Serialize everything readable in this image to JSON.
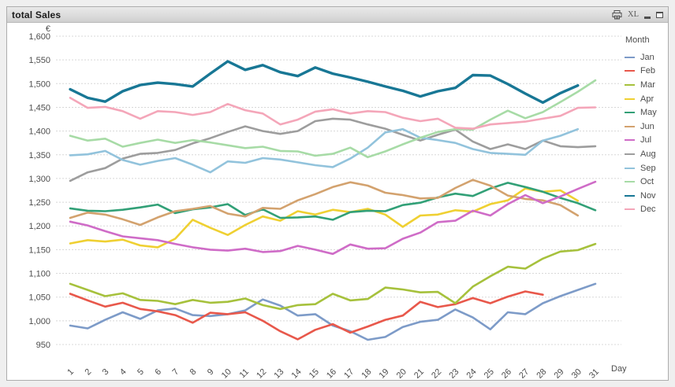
{
  "window": {
    "title": "total Sales",
    "controls": {
      "print_icon": "printer-icon",
      "excel_label": "XL",
      "minimize_icon": "minimize-icon",
      "maximize_icon": "maximize-icon"
    }
  },
  "chart_data": {
    "type": "line",
    "title": "total Sales",
    "xlabel": "Day",
    "ylabel_unit": "€",
    "x": [
      1,
      2,
      3,
      4,
      5,
      6,
      7,
      8,
      9,
      10,
      11,
      12,
      13,
      14,
      15,
      16,
      17,
      18,
      19,
      20,
      21,
      22,
      23,
      24,
      25,
      26,
      27,
      28,
      29,
      30,
      31
    ],
    "ylim": [
      950,
      1600
    ],
    "ytick_step": 50,
    "ytick_labels": [
      "1,600",
      "1,550",
      "1,500",
      "1,450",
      "1,400",
      "1,350",
      "1,300",
      "1,250",
      "1,200",
      "1,150",
      "1,100",
      "1,050",
      "1,000",
      "950"
    ],
    "grid": "horizontal-dashed",
    "legend_title": "Month",
    "legend_position": "right",
    "series": [
      {
        "name": "Jan",
        "color": "#7D9BC8",
        "width": 2.6,
        "values": [
          990,
          984,
          1002,
          1018,
          1004,
          1022,
          1026,
          1012,
          1010,
          1014,
          1022,
          1045,
          1032,
          1011,
          1014,
          990,
          978,
          960,
          966,
          987,
          998,
          1002,
          1024,
          1007,
          982,
          1018,
          1014,
          1037,
          1052,
          1065,
          1078
        ]
      },
      {
        "name": "Feb",
        "color": "#E8584B",
        "width": 2.6,
        "values": [
          1057,
          1043,
          1030,
          1038,
          1025,
          1020,
          1012,
          996,
          1017,
          1014,
          1018,
          1000,
          978,
          961,
          981,
          993,
          975,
          988,
          1002,
          1011,
          1040,
          1029,
          1035,
          1048,
          1037,
          1051,
          1062,
          1055
        ]
      },
      {
        "name": "Mar",
        "color": "#A6C13C",
        "width": 2.6,
        "values": [
          1078,
          1065,
          1052,
          1058,
          1044,
          1042,
          1035,
          1044,
          1038,
          1040,
          1047,
          1033,
          1025,
          1033,
          1035,
          1057,
          1043,
          1046,
          1070,
          1066,
          1060,
          1061,
          1037,
          1072,
          1094,
          1114,
          1110,
          1131,
          1146,
          1149,
          1162
        ]
      },
      {
        "name": "Apr",
        "color": "#EFD032",
        "width": 2.6,
        "values": [
          1163,
          1170,
          1167,
          1171,
          1159,
          1155,
          1173,
          1213,
          1196,
          1181,
          1202,
          1220,
          1211,
          1231,
          1224,
          1234,
          1229,
          1236,
          1224,
          1198,
          1222,
          1224,
          1233,
          1230,
          1246,
          1254,
          1279,
          1272,
          1275,
          1253
        ]
      },
      {
        "name": "May",
        "color": "#32A077",
        "width": 2.6,
        "values": [
          1237,
          1232,
          1231,
          1234,
          1239,
          1245,
          1227,
          1235,
          1239,
          1246,
          1223,
          1235,
          1217,
          1218,
          1220,
          1213,
          1229,
          1232,
          1231,
          1244,
          1249,
          1260,
          1268,
          1263,
          1279,
          1291,
          1282,
          1272,
          1259,
          1248,
          1233
        ]
      },
      {
        "name": "Jun",
        "color": "#D3A26E",
        "width": 2.6,
        "values": [
          1217,
          1228,
          1224,
          1214,
          1202,
          1218,
          1231,
          1236,
          1242,
          1226,
          1220,
          1238,
          1236,
          1254,
          1267,
          1282,
          1292,
          1285,
          1270,
          1265,
          1258,
          1259,
          1280,
          1297,
          1285,
          1264,
          1257,
          1254,
          1244,
          1222
        ]
      },
      {
        "name": "Jul",
        "color": "#CF6CC7",
        "width": 2.6,
        "values": [
          1209,
          1201,
          1189,
          1178,
          1174,
          1170,
          1162,
          1155,
          1150,
          1148,
          1152,
          1145,
          1147,
          1158,
          1150,
          1141,
          1161,
          1152,
          1153,
          1173,
          1186,
          1208,
          1211,
          1232,
          1222,
          1246,
          1265,
          1248,
          1262,
          1278,
          1293
        ]
      },
      {
        "name": "Aug",
        "color": "#9D9D9D",
        "width": 2.6,
        "values": [
          1295,
          1313,
          1322,
          1342,
          1352,
          1354,
          1360,
          1374,
          1385,
          1398,
          1410,
          1400,
          1394,
          1400,
          1421,
          1426,
          1424,
          1414,
          1405,
          1392,
          1380,
          1392,
          1403,
          1378,
          1362,
          1372,
          1362,
          1380,
          1368,
          1366,
          1368
        ]
      },
      {
        "name": "Sep",
        "color": "#92C3DC",
        "width": 2.6,
        "values": [
          1349,
          1351,
          1358,
          1339,
          1329,
          1337,
          1343,
          1329,
          1313,
          1336,
          1333,
          1343,
          1340,
          1334,
          1328,
          1324,
          1342,
          1365,
          1397,
          1404,
          1386,
          1381,
          1375,
          1362,
          1354,
          1352,
          1350,
          1380,
          1390,
          1404
        ]
      },
      {
        "name": "Oct",
        "color": "#A7DBA6",
        "width": 2.6,
        "values": [
          1390,
          1380,
          1384,
          1367,
          1375,
          1382,
          1375,
          1381,
          1376,
          1370,
          1364,
          1367,
          1358,
          1357,
          1348,
          1352,
          1365,
          1345,
          1357,
          1372,
          1386,
          1398,
          1404,
          1403,
          1424,
          1443,
          1427,
          1440,
          1461,
          1483,
          1507
        ]
      },
      {
        "name": "Nov",
        "color": "#187795",
        "width": 3.4,
        "values": [
          1488,
          1470,
          1462,
          1484,
          1497,
          1502,
          1499,
          1494,
          1521,
          1547,
          1529,
          1539,
          1524,
          1516,
          1534,
          1521,
          1513,
          1504,
          1494,
          1485,
          1473,
          1484,
          1491,
          1518,
          1517,
          1499,
          1479,
          1460,
          1480,
          1496
        ]
      },
      {
        "name": "Dec",
        "color": "#F4A6B9",
        "width": 2.6,
        "values": [
          1470,
          1449,
          1451,
          1442,
          1426,
          1442,
          1440,
          1434,
          1440,
          1457,
          1444,
          1437,
          1414,
          1424,
          1441,
          1446,
          1437,
          1442,
          1440,
          1428,
          1421,
          1426,
          1407,
          1405,
          1414,
          1417,
          1420,
          1426,
          1432,
          1449,
          1450
        ]
      }
    ]
  }
}
